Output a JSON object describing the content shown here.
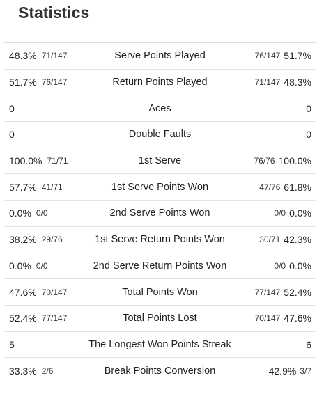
{
  "title": "Statistics",
  "rows": [
    {
      "label": "Serve Points Played",
      "left": {
        "pct": "48.3%",
        "frac": "71/147"
      },
      "right": {
        "pct": "51.7%",
        "frac": "76/147"
      }
    },
    {
      "label": "Return Points Played",
      "left": {
        "pct": "51.7%",
        "frac": "76/147"
      },
      "right": {
        "pct": "48.3%",
        "frac": "71/147"
      }
    },
    {
      "label": "Aces",
      "left": {
        "pct": "0",
        "frac": ""
      },
      "right": {
        "pct": "0",
        "frac": ""
      }
    },
    {
      "label": "Double Faults",
      "left": {
        "pct": "0",
        "frac": ""
      },
      "right": {
        "pct": "0",
        "frac": ""
      }
    },
    {
      "label": "1st Serve",
      "left": {
        "pct": "100.0%",
        "frac": "71/71"
      },
      "right": {
        "pct": "100.0%",
        "frac": "76/76"
      }
    },
    {
      "label": "1st Serve Points Won",
      "left": {
        "pct": "57.7%",
        "frac": "41/71"
      },
      "right": {
        "pct": "61.8%",
        "frac": "47/76"
      }
    },
    {
      "label": "2nd Serve Points Won",
      "left": {
        "pct": "0.0%",
        "frac": "0/0"
      },
      "right": {
        "pct": "0.0%",
        "frac": "0/0"
      }
    },
    {
      "label": "1st Serve Return Points Won",
      "left": {
        "pct": "38.2%",
        "frac": "29/76"
      },
      "right": {
        "pct": "42.3%",
        "frac": "30/71"
      }
    },
    {
      "label": "2nd Serve Return Points Won",
      "left": {
        "pct": "0.0%",
        "frac": "0/0"
      },
      "right": {
        "pct": "0.0%",
        "frac": "0/0"
      }
    },
    {
      "label": "Total Points Won",
      "left": {
        "pct": "47.6%",
        "frac": "70/147"
      },
      "right": {
        "pct": "52.4%",
        "frac": "77/147"
      }
    },
    {
      "label": "Total Points Lost",
      "left": {
        "pct": "52.4%",
        "frac": "77/147"
      },
      "right": {
        "pct": "47.6%",
        "frac": "70/147"
      }
    },
    {
      "label": "The Longest Won Points Streak",
      "left": {
        "pct": "5",
        "frac": ""
      },
      "right": {
        "pct": "6",
        "frac": ""
      }
    },
    {
      "label": "Break Points Conversion",
      "left": {
        "pct": "33.3%",
        "frac": "2/6"
      },
      "right": {
        "pct": "42.9%",
        "frac": "3/7",
        "frac_after": true
      }
    }
  ]
}
